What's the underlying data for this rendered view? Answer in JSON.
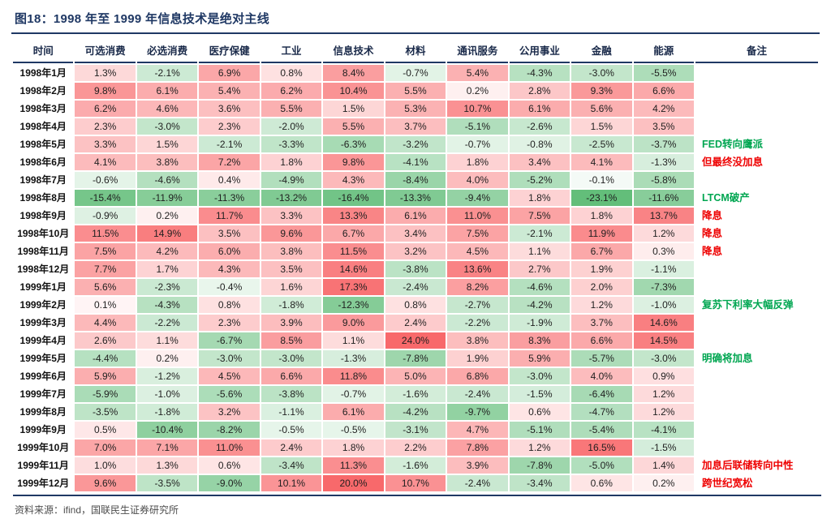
{
  "header": {
    "title": "图18：1998 年至 1999 年信息技术是绝对主线"
  },
  "footer": {
    "source": "资料来源：ifind，国联民生证券研究所"
  },
  "colors": {
    "positive": "#F8696B",
    "negative": "#63BE7A",
    "note_red": "#EE0000",
    "note_green": "#00A651",
    "title_navy": "#1F3864"
  },
  "chart_data": {
    "type": "heatmap",
    "title": "图18：1998 年至 1999 年信息技术是绝对主线",
    "value_unit": "%",
    "value_range": [
      -23.1,
      24.0
    ],
    "color_convention": "red = positive return, green = negative return, white = 0",
    "row_header": "时间",
    "note_header": "备注",
    "columns": [
      "可选消费",
      "必选消费",
      "医疗保健",
      "工业",
      "信息技术",
      "材料",
      "通讯服务",
      "公用事业",
      "金融",
      "能源"
    ],
    "rows": [
      {
        "label": "1998年1月",
        "values": [
          1.3,
          -2.1,
          6.9,
          0.8,
          8.4,
          -0.7,
          5.4,
          -4.3,
          -3.0,
          -5.5
        ],
        "note": "",
        "note_color": ""
      },
      {
        "label": "1998年2月",
        "values": [
          9.8,
          6.1,
          5.4,
          6.2,
          10.4,
          5.5,
          0.2,
          2.8,
          9.3,
          6.6
        ],
        "note": "",
        "note_color": ""
      },
      {
        "label": "1998年3月",
        "values": [
          6.2,
          4.6,
          3.6,
          5.5,
          1.5,
          5.3,
          10.7,
          6.1,
          5.6,
          4.2
        ],
        "note": "",
        "note_color": ""
      },
      {
        "label": "1998年4月",
        "values": [
          2.3,
          -3.0,
          2.3,
          -2.0,
          5.5,
          3.7,
          -5.1,
          -2.6,
          1.5,
          3.5
        ],
        "note": "",
        "note_color": ""
      },
      {
        "label": "1998年5月",
        "values": [
          3.3,
          1.5,
          -2.1,
          -3.3,
          -6.3,
          -3.2,
          -0.7,
          -0.8,
          -2.5,
          -3.7
        ],
        "note": "FED转向鹰派",
        "note_color": "green"
      },
      {
        "label": "1998年6月",
        "values": [
          4.1,
          3.8,
          7.2,
          1.8,
          9.8,
          -4.1,
          1.8,
          3.4,
          4.1,
          -1.3
        ],
        "note": "但最终没加息",
        "note_color": "red"
      },
      {
        "label": "1998年7月",
        "values": [
          -0.6,
          -4.6,
          0.4,
          -4.9,
          4.3,
          -8.4,
          4.0,
          -5.2,
          -0.1,
          -5.8
        ],
        "note": "",
        "note_color": ""
      },
      {
        "label": "1998年8月",
        "values": [
          -15.4,
          -11.9,
          -11.3,
          -13.2,
          -16.4,
          -13.3,
          -9.4,
          1.8,
          -23.1,
          -11.6
        ],
        "note": "LTCM破产",
        "note_color": "green"
      },
      {
        "label": "1998年9月",
        "values": [
          -0.9,
          0.2,
          11.7,
          3.3,
          13.3,
          6.1,
          11.0,
          7.5,
          1.8,
          13.7
        ],
        "note": "降息",
        "note_color": "red"
      },
      {
        "label": "1998年10月",
        "values": [
          11.5,
          14.9,
          3.5,
          9.6,
          6.7,
          3.4,
          7.5,
          -2.1,
          11.9,
          1.2
        ],
        "note": "降息",
        "note_color": "red"
      },
      {
        "label": "1998年11月",
        "values": [
          7.5,
          4.2,
          6.0,
          3.8,
          11.5,
          3.2,
          4.5,
          1.1,
          6.7,
          0.3
        ],
        "note": "降息",
        "note_color": "red"
      },
      {
        "label": "1998年12月",
        "values": [
          7.7,
          1.7,
          4.3,
          3.5,
          14.6,
          -3.8,
          13.6,
          2.7,
          1.9,
          -1.1
        ],
        "note": "",
        "note_color": ""
      },
      {
        "label": "1999年1月",
        "values": [
          5.6,
          -2.3,
          -0.4,
          1.6,
          17.3,
          -2.4,
          8.2,
          -4.6,
          2.0,
          -7.3
        ],
        "note": "",
        "note_color": ""
      },
      {
        "label": "1999年2月",
        "values": [
          0.1,
          -4.3,
          0.8,
          -1.8,
          -12.3,
          0.8,
          -2.7,
          -4.2,
          1.2,
          -1.0
        ],
        "note": "复苏下利率大幅反弹",
        "note_color": "green"
      },
      {
        "label": "1999年3月",
        "values": [
          4.4,
          -2.2,
          2.3,
          3.9,
          9.0,
          2.4,
          -2.2,
          -1.9,
          3.7,
          14.6
        ],
        "note": "",
        "note_color": ""
      },
      {
        "label": "1999年4月",
        "values": [
          2.6,
          1.1,
          -6.7,
          8.5,
          1.1,
          24.0,
          3.8,
          8.3,
          6.6,
          14.5
        ],
        "note": "",
        "note_color": ""
      },
      {
        "label": "1999年5月",
        "values": [
          -4.4,
          0.2,
          -3.0,
          -3.0,
          -1.3,
          -7.8,
          1.9,
          5.9,
          -5.7,
          -3.0
        ],
        "note": "明确将加息",
        "note_color": "green"
      },
      {
        "label": "1999年6月",
        "values": [
          5.9,
          -1.2,
          4.5,
          6.6,
          11.8,
          5.0,
          6.8,
          -3.0,
          4.0,
          0.9
        ],
        "note": "",
        "note_color": ""
      },
      {
        "label": "1999年7月",
        "values": [
          -5.9,
          -1.0,
          -5.6,
          -3.8,
          -0.7,
          -1.6,
          -2.4,
          -1.5,
          -6.4,
          1.2
        ],
        "note": "",
        "note_color": ""
      },
      {
        "label": "1999年8月",
        "values": [
          -3.5,
          -1.8,
          3.2,
          -1.1,
          6.1,
          -4.2,
          -9.7,
          0.6,
          -4.7,
          1.2
        ],
        "note": "",
        "note_color": ""
      },
      {
        "label": "1999年9月",
        "values": [
          0.5,
          -10.4,
          -8.2,
          -0.5,
          -0.5,
          -3.1,
          4.7,
          -5.1,
          -5.4,
          -4.1
        ],
        "note": "",
        "note_color": ""
      },
      {
        "label": "1999年10月",
        "values": [
          7.0,
          7.1,
          11.0,
          2.4,
          1.8,
          2.2,
          7.8,
          1.2,
          16.5,
          -1.5
        ],
        "note": "",
        "note_color": ""
      },
      {
        "label": "1999年11月",
        "values": [
          1.0,
          1.3,
          0.6,
          -3.4,
          11.3,
          -1.6,
          3.9,
          -7.8,
          -5.0,
          1.4
        ],
        "note": "加息后联储转向中性",
        "note_color": "red"
      },
      {
        "label": "1999年12月",
        "values": [
          9.6,
          -3.5,
          -9.0,
          10.1,
          20.0,
          10.7,
          -2.4,
          -3.4,
          0.6,
          0.2
        ],
        "note": "跨世纪宽松",
        "note_color": "red"
      }
    ]
  }
}
